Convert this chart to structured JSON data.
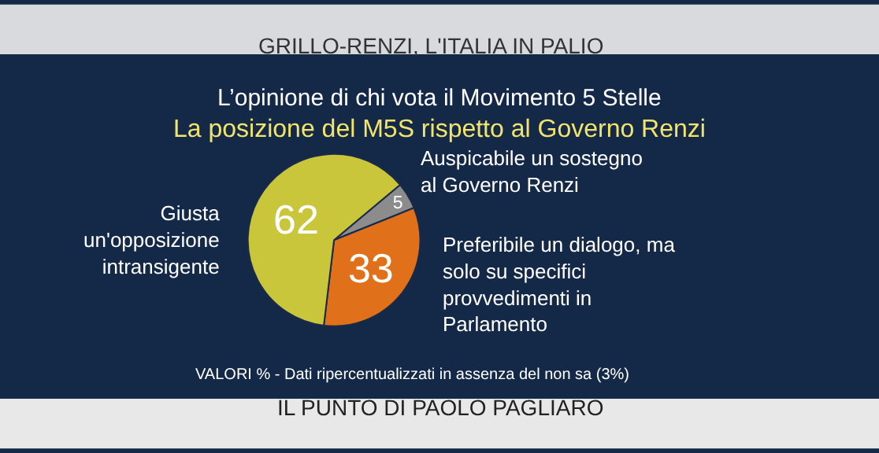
{
  "chart_data": {
    "type": "pie",
    "title": "L’opinione di chi vota il Movimento 5 Stelle",
    "subtitle": "La posizione del M5S rispetto al Governo Renzi",
    "categories": [
      "Auspicabile un sostegno al Governo Renzi",
      "Preferibile un dialogo, ma solo su specifici provvedimenti in Parlamento",
      "Giusta un'opposizione intransigente"
    ],
    "values": [
      5,
      33,
      62
    ],
    "colors": [
      "#8c8c8c",
      "#e0701a",
      "#c9c63c"
    ],
    "data_labels": true,
    "legend": false,
    "annotations": [
      "GRILLO-RENZI, L'ITALIA IN PALIO",
      "VALORI % - Dati ripercentualizzati in assenza del non sa (3%)",
      "IL PUNTO DI PAOLO PAGLIARO"
    ]
  }
}
